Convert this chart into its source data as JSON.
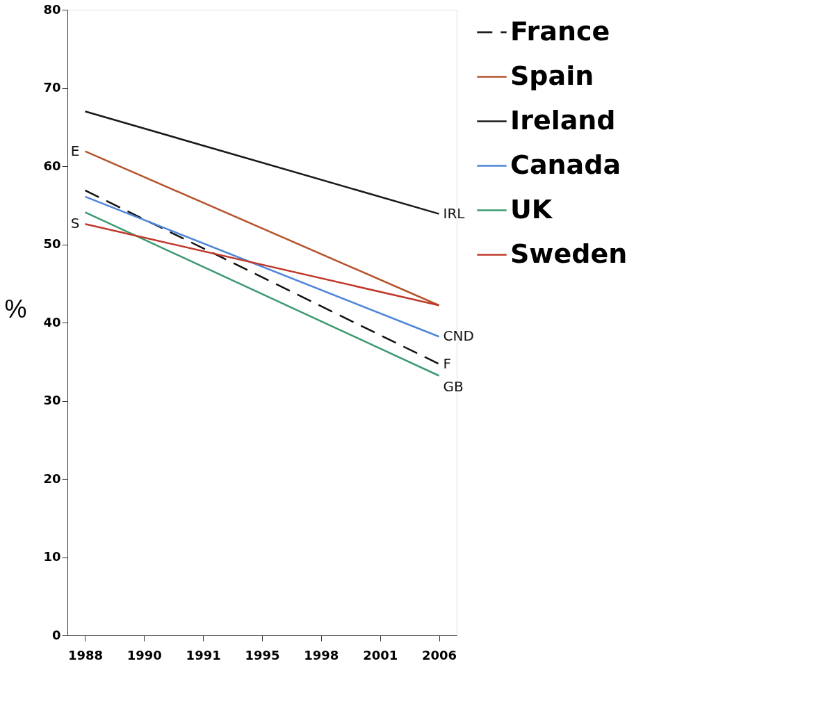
{
  "chart_data": {
    "type": "line",
    "ylabel": "%",
    "categories": [
      "1988",
      "1990",
      "1991",
      "1995",
      "1998",
      "2001",
      "2006"
    ],
    "ylim": [
      0,
      80
    ],
    "yticks": [
      0,
      10,
      20,
      30,
      40,
      50,
      60,
      70,
      80
    ],
    "grid": false,
    "legend": "right",
    "marker": "none",
    "series": [
      {
        "name": "France",
        "color": "#111111",
        "line_style": "dashed",
        "values": [
          56.9,
          null,
          null,
          null,
          null,
          null,
          34.7
        ]
      },
      {
        "name": "Spain",
        "color": "#b5532c",
        "line_style": "solid",
        "values": [
          61.9,
          null,
          null,
          null,
          null,
          null,
          42.2
        ]
      },
      {
        "name": "Ireland",
        "color": "#1a1a1a",
        "line_style": "solid",
        "values": [
          67.0,
          null,
          null,
          null,
          null,
          null,
          53.9
        ]
      },
      {
        "name": "Canada",
        "color": "#4f86d9",
        "line_style": "solid",
        "values": [
          56.1,
          null,
          null,
          null,
          null,
          null,
          38.2
        ]
      },
      {
        "name": "UK",
        "color": "#3d9970",
        "line_style": "solid",
        "values": [
          54.1,
          null,
          null,
          null,
          null,
          null,
          33.2
        ]
      },
      {
        "name": "Sweden",
        "color": "#c0392b",
        "line_style": "solid",
        "values": [
          52.6,
          null,
          null,
          null,
          null,
          null,
          42.2
        ]
      }
    ],
    "annotations": [
      {
        "text": "E",
        "x": "1988",
        "y": 61.9
      },
      {
        "text": "S",
        "x": "1988",
        "y": 52.6
      },
      {
        "text": "IRL",
        "x": "2006",
        "y": 53.9
      },
      {
        "text": "CND",
        "x": "2006",
        "y": 38.2
      },
      {
        "text": "F",
        "x": "2006",
        "y": 34.7
      },
      {
        "text": "GB",
        "x": "2006",
        "y": 33.2
      }
    ]
  }
}
